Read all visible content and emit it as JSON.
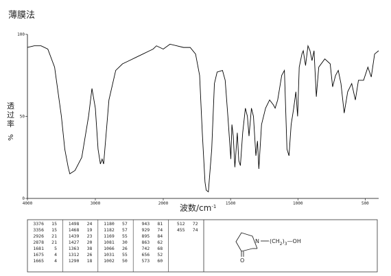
{
  "chart_data": {
    "type": "line",
    "title": "薄膜法",
    "x_label": "波数/cm",
    "x_label_sup": "-1",
    "y_label": "透过率",
    "y_unit": "%",
    "xlim": [
      4000,
      400
    ],
    "x_scale_change": 2000,
    "xticks": [
      4000,
      3000,
      2000,
      1500,
      1000,
      500
    ],
    "ylim": [
      0,
      100
    ],
    "yticks": [
      0,
      50,
      100
    ],
    "x": [
      4000,
      3900,
      3800,
      3700,
      3600,
      3500,
      3450,
      3400,
      3376,
      3300,
      3200,
      3100,
      3050,
      3000,
      2960,
      2926,
      2900,
      2878,
      2850,
      2800,
      2700,
      2600,
      2500,
      2400,
      2300,
      2200,
      2150,
      2100,
      2050,
      2000,
      1950,
      1900,
      1850,
      1800,
      1760,
      1730,
      1710,
      1690,
      1681,
      1665,
      1640,
      1620,
      1600,
      1560,
      1540,
      1520,
      1498,
      1490,
      1480,
      1468,
      1450,
      1439,
      1427,
      1410,
      1390,
      1375,
      1363,
      1345,
      1330,
      1312,
      1300,
      1290,
      1270,
      1240,
      1210,
      1182,
      1169,
      1150,
      1120,
      1100,
      1081,
      1066,
      1050,
      1031,
      1015,
      1002,
      990,
      970,
      960,
      943,
      925,
      910,
      895,
      880,
      863,
      845,
      800,
      760,
      742,
      720,
      700,
      680,
      656,
      630,
      600,
      573,
      550,
      512,
      480,
      455,
      430,
      400
    ],
    "series": [
      {
        "color": "#000000",
        "values": [
          92,
          93,
          93,
          91,
          80,
          50,
          30,
          19,
          15,
          17,
          25,
          50,
          67,
          55,
          30,
          21,
          24,
          21,
          35,
          60,
          78,
          82,
          84,
          86,
          88,
          90,
          91,
          93,
          92,
          91,
          94,
          93,
          92,
          92,
          88,
          75,
          40,
          10,
          5,
          4,
          30,
          70,
          77,
          78,
          72,
          50,
          24,
          45,
          38,
          19,
          40,
          23,
          20,
          40,
          55,
          50,
          38,
          55,
          50,
          26,
          35,
          18,
          45,
          55,
          60,
          57,
          55,
          60,
          75,
          78,
          30,
          26,
          45,
          55,
          65,
          50,
          80,
          88,
          90,
          81,
          93,
          90,
          84,
          90,
          62,
          80,
          85,
          82,
          68,
          75,
          78,
          70,
          52,
          65,
          70,
          60,
          72,
          72,
          80,
          74,
          88,
          90
        ]
      }
    ]
  },
  "peak_table": [
    [
      [
        "3376",
        "15"
      ],
      [
        "3356",
        "15"
      ],
      [
        "2926",
        "21"
      ],
      [
        "2878",
        "21"
      ],
      [
        "1681",
        "5"
      ],
      [
        "1675",
        "4"
      ],
      [
        "1665",
        "4"
      ]
    ],
    [
      [
        "1498",
        "24"
      ],
      [
        "1468",
        "19"
      ],
      [
        "1439",
        "23"
      ],
      [
        "1427",
        "20"
      ],
      [
        "1363",
        "38"
      ],
      [
        "1312",
        "26"
      ],
      [
        "1290",
        "18"
      ]
    ],
    [
      [
        "1180",
        "57"
      ],
      [
        "1182",
        "57"
      ],
      [
        "1169",
        "55"
      ],
      [
        "1081",
        "30"
      ],
      [
        "1066",
        "26"
      ],
      [
        "1031",
        "55"
      ],
      [
        "1002",
        "50"
      ]
    ],
    [
      [
        "943",
        "81"
      ],
      [
        "929",
        "74"
      ],
      [
        "895",
        "84"
      ],
      [
        "863",
        "62"
      ],
      [
        "742",
        "68"
      ],
      [
        "656",
        "52"
      ],
      [
        "573",
        "60"
      ]
    ],
    [
      [
        "512",
        "72"
      ],
      [
        "455",
        "74"
      ]
    ]
  ],
  "structure": {
    "n": "N",
    "chain": "(CH",
    "sub": "2",
    "close": ")",
    "count": "3",
    "oh": "—OH",
    "o": "O"
  }
}
